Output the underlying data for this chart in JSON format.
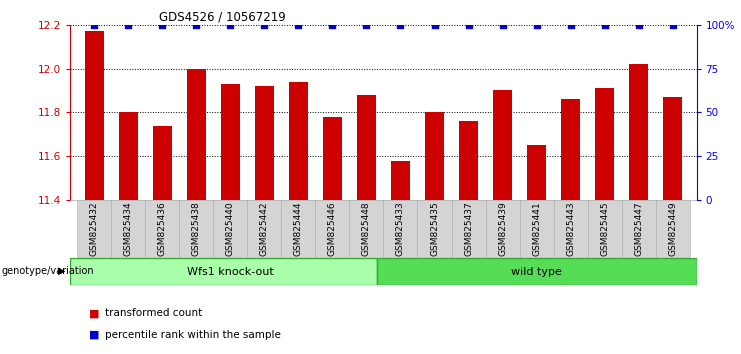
{
  "title": "GDS4526 / 10567219",
  "samples": [
    "GSM825432",
    "GSM825434",
    "GSM825436",
    "GSM825438",
    "GSM825440",
    "GSM825442",
    "GSM825444",
    "GSM825446",
    "GSM825448",
    "GSM825433",
    "GSM825435",
    "GSM825437",
    "GSM825439",
    "GSM825441",
    "GSM825443",
    "GSM825445",
    "GSM825447",
    "GSM825449"
  ],
  "red_values": [
    12.17,
    11.8,
    11.74,
    12.0,
    11.93,
    11.92,
    11.94,
    11.78,
    11.88,
    11.58,
    11.8,
    11.76,
    11.9,
    11.65,
    11.86,
    11.91,
    12.02,
    11.87
  ],
  "blue_values": [
    100,
    100,
    100,
    100,
    100,
    100,
    100,
    100,
    100,
    100,
    100,
    100,
    100,
    100,
    100,
    100,
    100,
    100
  ],
  "ylim_left": [
    11.4,
    12.2
  ],
  "ylim_right": [
    0,
    100
  ],
  "yticks_left": [
    11.4,
    11.6,
    11.8,
    12.0,
    12.2
  ],
  "yticks_right": [
    0,
    25,
    50,
    75,
    100
  ],
  "ytick_labels_right": [
    "0",
    "25",
    "50",
    "75",
    "100%"
  ],
  "group1_label": "Wfs1 knock-out",
  "group2_label": "wild type",
  "group1_count": 9,
  "group2_count": 9,
  "bar_color_red": "#cc0000",
  "bar_color_blue": "#0000cc",
  "group1_color": "#aaffaa",
  "group2_color": "#55dd55",
  "legend_red_label": "transformed count",
  "legend_blue_label": "percentile rank within the sample",
  "genotype_label": "genotype/variation"
}
